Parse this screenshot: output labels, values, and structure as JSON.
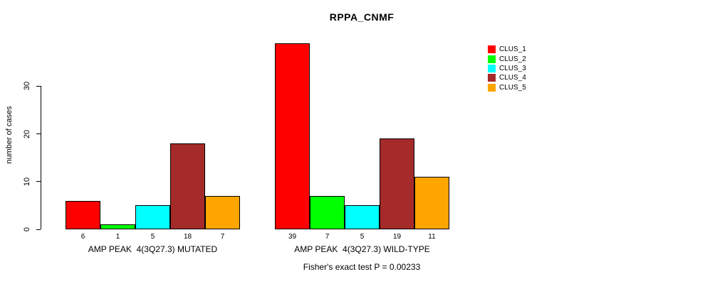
{
  "chart_data": {
    "type": "bar",
    "title": "RPPA_CNMF",
    "ylabel": "number of cases",
    "y_ticks": [
      0,
      10,
      20,
      30
    ],
    "ylim": [
      0,
      39
    ],
    "grid": false,
    "legend_position": "top-right",
    "categories": [
      "AMP PEAK  4(3Q27.3) MUTATED",
      "AMP PEAK  4(3Q27.3) WILD-TYPE"
    ],
    "series": [
      {
        "name": "CLUS_1",
        "color": "#FF0000",
        "values": [
          6,
          39
        ]
      },
      {
        "name": "CLUS_2",
        "color": "#00FF00",
        "values": [
          1,
          7
        ]
      },
      {
        "name": "CLUS_3",
        "color": "#00FFFF",
        "values": [
          5,
          5
        ]
      },
      {
        "name": "CLUS_4",
        "color": "#A52A2A",
        "values": [
          18,
          19
        ]
      },
      {
        "name": "CLUS_5",
        "color": "#FFA500",
        "values": [
          7,
          11
        ]
      }
    ],
    "footnote": "Fisher's exact test P = 0.00233"
  }
}
